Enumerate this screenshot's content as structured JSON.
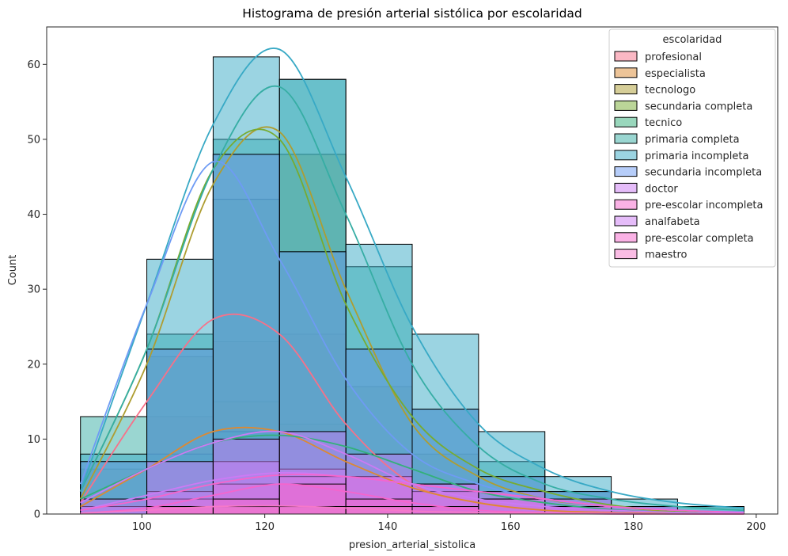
{
  "chart_data": {
    "type": "histogram",
    "title": "Histograma de presión arterial sistólica por escolaridad",
    "xlabel": "presion_arterial_sistolica",
    "ylabel": "Count",
    "xlim": [
      84.5,
      203.5
    ],
    "ylim": [
      0,
      65
    ],
    "xticks": [
      100,
      120,
      140,
      160,
      180,
      200
    ],
    "yticks": [
      0,
      10,
      20,
      30,
      40,
      50,
      60
    ],
    "bin_edges": [
      90,
      100.8,
      111.6,
      122.4,
      133.2,
      144,
      154.8,
      165.6,
      176.4,
      187.2,
      198
    ],
    "legend": {
      "title": "escolaridad",
      "position": "upper right"
    },
    "series": [
      {
        "name": "profesional",
        "color": "#f77189",
        "values": [
          2,
          13,
          23,
          24,
          8,
          2,
          1,
          0,
          0,
          0
        ],
        "kde": [
          1.5,
          15,
          26,
          24,
          12,
          4,
          1.5,
          0.5,
          0.2,
          0.1,
          0
        ]
      },
      {
        "name": "especialista",
        "color": "#dc8932",
        "values": [
          1,
          8,
          15,
          12,
          6,
          3,
          1,
          0,
          0,
          0
        ],
        "kde": [
          1,
          6,
          11,
          11,
          7,
          3.5,
          1.5,
          0.5,
          0.2,
          0.1,
          0
        ]
      },
      {
        "name": "tecnologo",
        "color": "#ae9d31",
        "values": [
          6,
          21,
          48,
          48,
          17,
          8,
          3,
          1,
          0,
          0
        ],
        "kde": [
          2,
          20,
          44,
          51,
          30,
          12,
          5,
          2,
          1,
          0.3,
          0.1
        ]
      },
      {
        "name": "secundaria completa",
        "color": "#77ab31",
        "values": [
          7,
          22,
          42,
          35,
          22,
          14,
          5,
          3,
          1,
          0
        ],
        "kde": [
          3,
          22,
          46,
          50,
          28,
          13,
          6,
          3,
          1.2,
          0.4,
          0.2
        ]
      },
      {
        "name": "tecnico",
        "color": "#33b07a",
        "values": [
          2,
          8,
          11,
          11,
          8,
          4,
          2,
          1,
          0,
          0
        ],
        "kde": [
          2,
          6,
          9.5,
          10.5,
          9,
          6,
          3,
          1.5,
          0.6,
          0.2,
          0.1
        ]
      },
      {
        "name": "primaria completa",
        "color": "#36ada4",
        "values": [
          13,
          24,
          50,
          58,
          33,
          14,
          7,
          3,
          1,
          1
        ],
        "kde": [
          3,
          22,
          46,
          57,
          40,
          20,
          9,
          4,
          2,
          1,
          0.5
        ]
      },
      {
        "name": "primaria incompleta",
        "color": "#38a9c5",
        "values": [
          8,
          34,
          61,
          58,
          36,
          24,
          11,
          5,
          2,
          1
        ],
        "kde": [
          3,
          28,
          52,
          62,
          45,
          25,
          12,
          6,
          3,
          1.5,
          0.8
        ]
      },
      {
        "name": "secundaria incompleta",
        "color": "#6e9bf4",
        "values": [
          7,
          22,
          48,
          35,
          22,
          14,
          5,
          3,
          1,
          0
        ],
        "kde": [
          4,
          28,
          47,
          34,
          18,
          8,
          4,
          2,
          1,
          0.5,
          0.3
        ]
      },
      {
        "name": "doctor",
        "color": "#cc7af4",
        "values": [
          1,
          3,
          7,
          6,
          5,
          4,
          3,
          2,
          1,
          0
        ],
        "kde": [
          0.5,
          2.5,
          4.5,
          5.5,
          5,
          4,
          3,
          2,
          1,
          0.5,
          0.2
        ]
      },
      {
        "name": "pre-escolar incompleta",
        "color": "#f565cc",
        "values": [
          0,
          2,
          4,
          5,
          5,
          3,
          2,
          1,
          0,
          0
        ],
        "kde": [
          0.5,
          2,
          4,
          5.2,
          5,
          4,
          3,
          2,
          1,
          0.5,
          0.2
        ]
      },
      {
        "name": "analfabeta",
        "color": "#cc7af4",
        "values": [
          2,
          7,
          10,
          11,
          8,
          4,
          2,
          1,
          0,
          0
        ],
        "kde": [
          1.5,
          6,
          9.5,
          11,
          8,
          4,
          2,
          1,
          0.5,
          0.2,
          0.1
        ]
      },
      {
        "name": "pre-escolar completa",
        "color": "#f565cc",
        "values": [
          0,
          1,
          2,
          4,
          2,
          1,
          0,
          0,
          0,
          0
        ],
        "kde": [
          0.1,
          0.8,
          2.5,
          4,
          3,
          1.5,
          0.5,
          0.2,
          0.1,
          0,
          0
        ]
      },
      {
        "name": "maestro",
        "color": "#f579c9",
        "values": [
          0,
          1,
          1,
          1,
          1,
          0,
          0,
          0,
          0,
          0
        ],
        "kde": [
          0.1,
          0.5,
          1,
          1.1,
          0.8,
          0.4,
          0.2,
          0.1,
          0,
          0,
          0
        ]
      }
    ]
  }
}
